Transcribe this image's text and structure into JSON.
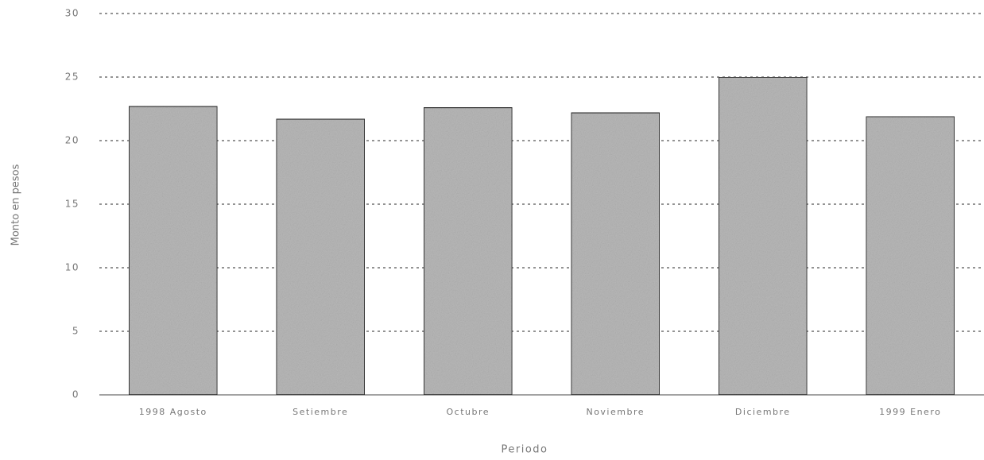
{
  "chart_data": {
    "type": "bar",
    "y_label": "Monto en pesos",
    "x_label": "Periodo",
    "categories": [
      "1998 Agosto",
      "Setiembre",
      "Octubre",
      "Noviembre",
      "Diciembre",
      "1999 Enero"
    ],
    "values": [
      22.7,
      21.7,
      22.6,
      22.2,
      25.0,
      21.9
    ],
    "color": "#b8b8b8",
    "ylim": [
      0,
      30
    ],
    "yticks": [
      0,
      5,
      10,
      15,
      20,
      25,
      30
    ],
    "grid": true
  }
}
